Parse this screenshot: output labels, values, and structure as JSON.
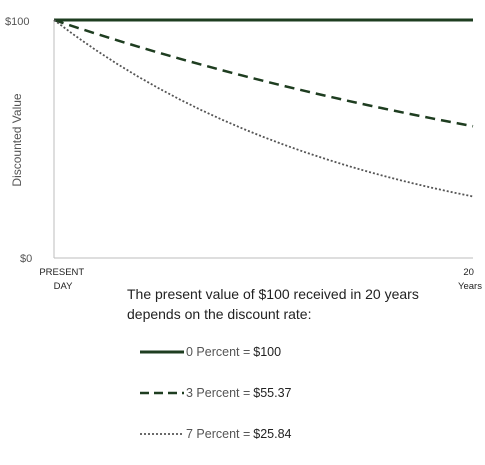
{
  "chart_data": {
    "type": "line",
    "title": "",
    "ylabel": "Discounted Value",
    "xlabel": "",
    "x": [
      0,
      1,
      2,
      3,
      4,
      5,
      6,
      7,
      8,
      9,
      10,
      11,
      12,
      13,
      14,
      15,
      16,
      17,
      18,
      19,
      20
    ],
    "xticks": [
      {
        "x": 0,
        "lines": [
          "PRESENT",
          "DAY"
        ]
      },
      {
        "x": 20,
        "lines": [
          "20",
          "Years"
        ]
      }
    ],
    "yticks": [
      {
        "y": 100,
        "label": "$100"
      },
      {
        "y": 0,
        "label": "$0"
      }
    ],
    "xlim": [
      0,
      20
    ],
    "ylim": [
      0,
      100
    ],
    "grid": false,
    "series": [
      {
        "rate": 0,
        "color": "#1e3d20",
        "style": "solid",
        "values": [
          100,
          100,
          100,
          100,
          100,
          100,
          100,
          100,
          100,
          100,
          100,
          100,
          100,
          100,
          100,
          100,
          100,
          100,
          100,
          100,
          100
        ]
      },
      {
        "rate": 3,
        "color": "#1e3d20",
        "style": "dashed",
        "values": [
          100,
          97.09,
          94.26,
          91.51,
          88.85,
          86.26,
          83.75,
          81.31,
          78.94,
          76.64,
          74.41,
          72.24,
          70.14,
          68.1,
          66.11,
          64.19,
          62.32,
          60.5,
          58.74,
          57.03,
          55.37
        ]
      },
      {
        "rate": 7,
        "color": "#555555",
        "style": "dotted",
        "values": [
          100,
          93.46,
          87.34,
          81.63,
          76.29,
          71.3,
          66.63,
          62.27,
          58.2,
          54.39,
          50.83,
          47.51,
          44.4,
          41.5,
          38.78,
          36.24,
          33.87,
          31.66,
          29.59,
          27.65,
          25.84
        ]
      }
    ]
  },
  "caption": "The present value of $100 received in 20 years depends on the discount rate:",
  "legend": [
    {
      "label": "0 Percent =",
      "value": "$100"
    },
    {
      "label": "3 Percent =",
      "value": "$55.37"
    },
    {
      "label": "7 Percent =",
      "value": "$25.84"
    }
  ]
}
